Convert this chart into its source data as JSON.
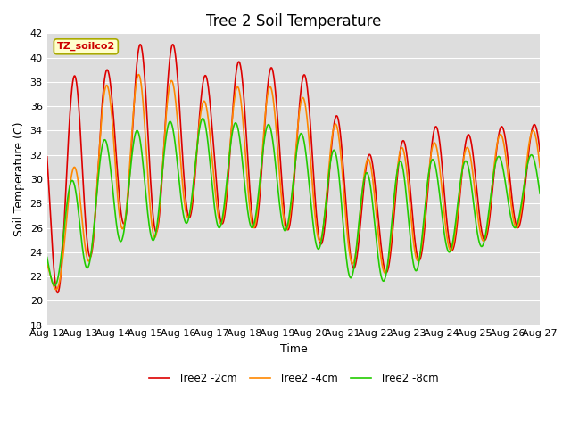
{
  "title": "Tree 2 Soil Temperature",
  "ylabel": "Soil Temperature (C)",
  "xlabel": "Time",
  "ylim": [
    18,
    42
  ],
  "yticks": [
    18,
    20,
    22,
    24,
    26,
    28,
    30,
    32,
    34,
    36,
    38,
    40,
    42
  ],
  "xtick_labels": [
    "Aug 12",
    "Aug 13",
    "Aug 14",
    "Aug 15",
    "Aug 16",
    "Aug 17",
    "Aug 18",
    "Aug 19",
    "Aug 20",
    "Aug 21",
    "Aug 22",
    "Aug 23",
    "Aug 24",
    "Aug 25",
    "Aug 26",
    "Aug 27"
  ],
  "colors": {
    "2cm": "#dd0000",
    "4cm": "#ff8800",
    "8cm": "#22cc00"
  },
  "fig_bg": "#ffffff",
  "plot_bg": "#dddddd",
  "grid_color": "#ffffff",
  "legend_title": "TZ_soilco2",
  "legend_entries": [
    "Tree2 -2cm",
    "Tree2 -4cm",
    "Tree2 -8cm"
  ],
  "title_fontsize": 12,
  "axis_label_fontsize": 9,
  "tick_fontsize": 8,
  "linewidth": 1.2,
  "n_days": 15,
  "hours_per_day": 24,
  "day_peaks_2cm": [
    36,
    39,
    39,
    41.5,
    41,
    38,
    40,
    39,
    38.5,
    34.5,
    31.5,
    33.5,
    34.5,
    33.5,
    34.5
  ],
  "day_troughs_2cm": [
    20,
    22,
    27,
    25,
    27,
    26.5,
    26,
    26,
    25.5,
    23,
    22,
    23,
    24,
    24.5,
    26
  ],
  "day_peaks_4cm": [
    24.5,
    32.5,
    39,
    38.5,
    38,
    36,
    38,
    37.5,
    36.5,
    34,
    31,
    33,
    33,
    32.5,
    34
  ],
  "day_troughs_4cm": [
    20.5,
    22,
    26.5,
    24.5,
    27,
    26.5,
    26,
    26,
    25.5,
    23.5,
    22,
    23,
    24,
    24.5,
    26
  ],
  "day_peaks_8cm": [
    26.5,
    31,
    34,
    34,
    35,
    35,
    34.5,
    34.5,
    33.5,
    32,
    30,
    32,
    31.5,
    31.5,
    32
  ],
  "day_troughs_8cm": [
    21,
    22,
    25,
    24.5,
    26.5,
    26,
    26,
    26,
    25,
    22,
    21.5,
    22,
    24,
    24,
    26
  ]
}
